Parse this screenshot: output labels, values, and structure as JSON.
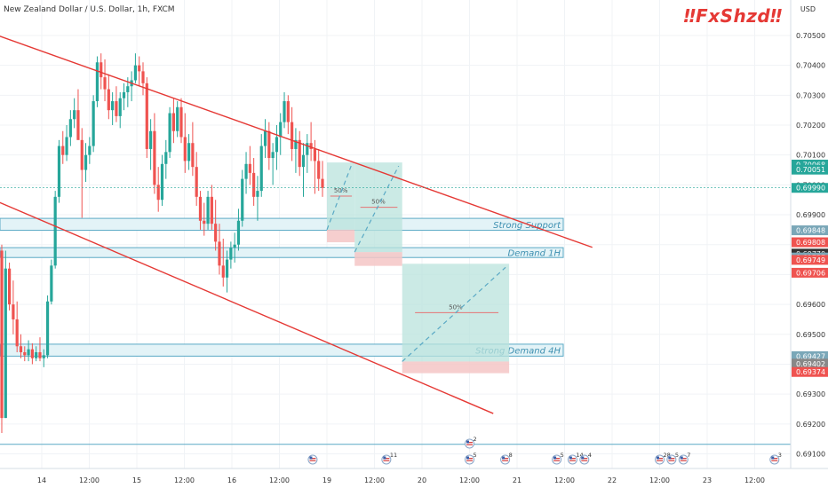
{
  "header": {
    "symbol": "New Zealand Dollar / U.S. Dollar, 1h, FXCM",
    "logo": "‼FxShzd‼",
    "currency": "USD"
  },
  "colors": {
    "bull": "#26a69a",
    "bear": "#ef5350",
    "channel": "#e53935",
    "zone_fill": "#e3f3f7",
    "zone_border": "#5aa9c5",
    "target": "#b9e3dc",
    "stop": "#f4c5c5",
    "dash": "#5aa9c5"
  },
  "chart_data": {
    "type": "candlestick",
    "ylim": [
      0.6906,
      0.7058
    ],
    "y_ticks": [
      "0.69100",
      "0.69200",
      "0.69300",
      "0.69400",
      "0.69500",
      "0.69600",
      "0.69700",
      "0.69800",
      "0.69900",
      "0.70000",
      "0.70100",
      "0.70200",
      "0.70300",
      "0.70400",
      "0.70500"
    ],
    "x_ticks": [
      "14",
      "12:00",
      "15",
      "12:00",
      "16",
      "12:00",
      "19",
      "12:00",
      "20",
      "12:00",
      "21",
      "12:00",
      "22",
      "12:00",
      "23",
      "12:00"
    ],
    "price_labels": [
      {
        "text": "0.70068",
        "value": 0.70068,
        "color": "#26a69a"
      },
      {
        "text": "0.70051",
        "value": 0.70051,
        "color": "#26a69a"
      },
      {
        "text": "0.69990",
        "value": 0.6999,
        "color": "#26a69a"
      },
      {
        "text": "0.69848",
        "value": 0.69848,
        "color": "#7aa7b8"
      },
      {
        "text": "0.69808",
        "value": 0.69808,
        "color": "#ef5350"
      },
      {
        "text": "0.69770",
        "value": 0.6977,
        "color": "#333333"
      },
      {
        "text": "0.69757",
        "value": 0.69757,
        "color": "#7aa7b8"
      },
      {
        "text": "0.69749",
        "value": 0.69749,
        "color": "#ef5350"
      },
      {
        "text": "0.69706",
        "value": 0.69706,
        "color": "#ef5350"
      },
      {
        "text": "0.69427",
        "value": 0.69427,
        "color": "#7aa7b8"
      },
      {
        "text": "0.69402",
        "value": 0.69402,
        "color": "#888888"
      },
      {
        "text": "0.69374",
        "value": 0.69374,
        "color": "#ef5350"
      }
    ],
    "zones": [
      {
        "label": "Strong Support",
        "top": 0.69888,
        "bottom": 0.69848
      },
      {
        "label": "Demand 1H",
        "top": 0.6979,
        "bottom": 0.69757
      },
      {
        "label": "Strong Demand 4H",
        "top": 0.69467,
        "bottom": 0.69427
      }
    ],
    "channel_lines": [
      {
        "x1": "2021-09-13 12:00",
        "y1": 0.70504,
        "x2": "2021-09-21 19:00",
        "y2": 0.69791
      },
      {
        "x1": "2021-09-13 00:00",
        "y1": 0.70017,
        "x2": "2021-09-20 18:00",
        "y2": 0.69235
      }
    ],
    "projections": [
      {
        "label": "50%",
        "start": "2021-09-19 00:00",
        "end": "2021-09-19 07:00",
        "entry": 0.6985,
        "target": 0.70075,
        "stop": 0.69808
      },
      {
        "label": "50%",
        "start": "2021-09-19 07:00",
        "end": "2021-09-19 19:00",
        "entry": 0.69775,
        "target": 0.70075,
        "stop": 0.69729
      },
      {
        "label": "50%",
        "start": "2021-09-19 19:00",
        "end": "2021-09-20 22:00",
        "entry": 0.69409,
        "target": 0.69736,
        "stop": 0.6937
      }
    ],
    "candles_ohlc": [
      [
        0.6978,
        0.698,
        0.6917,
        0.6922
      ],
      [
        0.6922,
        0.6978,
        0.6922,
        0.6972
      ],
      [
        0.6972,
        0.6974,
        0.6958,
        0.696
      ],
      [
        0.696,
        0.6968,
        0.695,
        0.6955
      ],
      [
        0.6955,
        0.6961,
        0.6944,
        0.6946
      ],
      [
        0.6946,
        0.695,
        0.6942,
        0.6944
      ],
      [
        0.6944,
        0.6946,
        0.6941,
        0.6943
      ],
      [
        0.6943,
        0.6948,
        0.6941,
        0.6945
      ],
      [
        0.6945,
        0.6947,
        0.694,
        0.6942
      ],
      [
        0.6942,
        0.6946,
        0.6941,
        0.6944
      ],
      [
        0.6944,
        0.6949,
        0.6941,
        0.6942
      ],
      [
        0.6942,
        0.6945,
        0.6939,
        0.6943
      ],
      [
        0.6943,
        0.6963,
        0.6942,
        0.6961
      ],
      [
        0.6961,
        0.6975,
        0.696,
        0.6973
      ],
      [
        0.6973,
        0.6998,
        0.6972,
        0.6996
      ],
      [
        0.6996,
        0.7015,
        0.6994,
        0.7013
      ],
      [
        0.7013,
        0.7018,
        0.7007,
        0.701
      ],
      [
        0.701,
        0.702,
        0.7008,
        0.7016
      ],
      [
        0.7016,
        0.7025,
        0.7013,
        0.7022
      ],
      [
        0.7022,
        0.7029,
        0.7019,
        0.7025
      ],
      [
        0.7025,
        0.7032,
        0.702,
        0.7015
      ],
      [
        0.7015,
        0.7019,
        0.6989,
        0.7005
      ],
      [
        0.7005,
        0.7014,
        0.7001,
        0.701
      ],
      [
        0.701,
        0.7016,
        0.7007,
        0.7013
      ],
      [
        0.7013,
        0.703,
        0.7011,
        0.7028
      ],
      [
        0.7028,
        0.7043,
        0.7026,
        0.7041
      ],
      [
        0.7041,
        0.7044,
        0.7032,
        0.7036
      ],
      [
        0.7036,
        0.7042,
        0.7028,
        0.7032
      ],
      [
        0.7032,
        0.7037,
        0.7022,
        0.7025
      ],
      [
        0.7025,
        0.7031,
        0.702,
        0.7028
      ],
      [
        0.7028,
        0.7033,
        0.7021,
        0.7023
      ],
      [
        0.7023,
        0.7031,
        0.7019,
        0.7029
      ],
      [
        0.7029,
        0.7034,
        0.7025,
        0.7031
      ],
      [
        0.7031,
        0.7036,
        0.7026,
        0.7033
      ],
      [
        0.7033,
        0.7038,
        0.7028,
        0.7035
      ],
      [
        0.7035,
        0.7044,
        0.7034,
        0.704
      ],
      [
        0.704,
        0.7043,
        0.7033,
        0.7038
      ],
      [
        0.7038,
        0.7041,
        0.703,
        0.7034
      ],
      [
        0.7034,
        0.7036,
        0.7009,
        0.7012
      ],
      [
        0.7012,
        0.7022,
        0.7005,
        0.7018
      ],
      [
        0.7018,
        0.7024,
        0.6997,
        0.7
      ],
      [
        0.7,
        0.7006,
        0.6991,
        0.6995
      ],
      [
        0.6995,
        0.701,
        0.6993,
        0.7007
      ],
      [
        0.7007,
        0.7015,
        0.7002,
        0.7011
      ],
      [
        0.7011,
        0.7026,
        0.7009,
        0.7024
      ],
      [
        0.7024,
        0.7029,
        0.7014,
        0.7018
      ],
      [
        0.7018,
        0.7028,
        0.7016,
        0.7026
      ],
      [
        0.7026,
        0.7029,
        0.7014,
        0.7016
      ],
      [
        0.7016,
        0.7024,
        0.7004,
        0.7008
      ],
      [
        0.7008,
        0.7017,
        0.7005,
        0.7014
      ],
      [
        0.7014,
        0.7021,
        0.7003,
        0.7006
      ],
      [
        0.7006,
        0.7011,
        0.6993,
        0.6996
      ],
      [
        0.6996,
        0.6998,
        0.6985,
        0.6988
      ],
      [
        0.6988,
        0.6994,
        0.6983,
        0.6987
      ],
      [
        0.6987,
        0.6998,
        0.6985,
        0.6996
      ],
      [
        0.6996,
        0.7,
        0.6985,
        0.6987
      ],
      [
        0.6987,
        0.6995,
        0.6978,
        0.6981
      ],
      [
        0.6981,
        0.6987,
        0.697,
        0.6973
      ],
      [
        0.6973,
        0.6982,
        0.6966,
        0.6969
      ],
      [
        0.6969,
        0.6978,
        0.6964,
        0.6975
      ],
      [
        0.6975,
        0.6981,
        0.6972,
        0.6979
      ],
      [
        0.6979,
        0.6984,
        0.6974,
        0.698
      ],
      [
        0.698,
        0.6992,
        0.6978,
        0.6988
      ],
      [
        0.6988,
        0.7005,
        0.6986,
        0.7002
      ],
      [
        0.7002,
        0.7011,
        0.6997,
        0.7007
      ],
      [
        0.7007,
        0.7013,
        0.7,
        0.7004
      ],
      [
        0.7004,
        0.7009,
        0.6993,
        0.6996
      ],
      [
        0.6996,
        0.7003,
        0.6988,
        0.6998
      ],
      [
        0.6998,
        0.7017,
        0.6996,
        0.7013
      ],
      [
        0.7013,
        0.7022,
        0.7009,
        0.7018
      ],
      [
        0.7018,
        0.7021,
        0.7005,
        0.7009
      ],
      [
        0.7009,
        0.7014,
        0.7,
        0.7011
      ],
      [
        0.7011,
        0.702,
        0.7005,
        0.7016
      ],
      [
        0.7016,
        0.7024,
        0.701,
        0.7021
      ],
      [
        0.7021,
        0.7031,
        0.7019,
        0.7028
      ],
      [
        0.7028,
        0.703,
        0.7017,
        0.7021
      ],
      [
        0.7021,
        0.7026,
        0.7008,
        0.7012
      ],
      [
        0.7012,
        0.7019,
        0.7004,
        0.7015
      ],
      [
        0.7015,
        0.7018,
        0.7003,
        0.7006
      ],
      [
        0.7006,
        0.7014,
        0.6996,
        0.701
      ],
      [
        0.701,
        0.7017,
        0.7004,
        0.7014
      ],
      [
        0.7014,
        0.7021,
        0.7008,
        0.7012
      ],
      [
        0.7012,
        0.7015,
        0.6997,
        0.7008
      ],
      [
        0.7008,
        0.7012,
        0.6998,
        0.7002
      ],
      [
        0.7002,
        0.7008,
        0.6996,
        0.6999
      ]
    ],
    "events": [
      {
        "date": "2021-09-18 06:00",
        "badge": ""
      },
      {
        "date": "2021-09-19 15:00",
        "badge": "11"
      },
      {
        "date": "2021-09-20 12:00",
        "badge": "5"
      },
      {
        "date": "2021-09-20 12:00",
        "badge": "2",
        "row": 1
      },
      {
        "date": "2021-09-20 21:00",
        "badge": "8"
      },
      {
        "date": "2021-09-21 10:00",
        "badge": "5"
      },
      {
        "date": "2021-09-21 14:00",
        "badge": "14"
      },
      {
        "date": "2021-09-21 17:00",
        "badge": "4"
      },
      {
        "date": "2021-09-22 12:00",
        "badge": "28"
      },
      {
        "date": "2021-09-22 15:00",
        "badge": "5"
      },
      {
        "date": "2021-09-22 18:00",
        "badge": "7"
      },
      {
        "date": "2021-09-23 17:00",
        "badge": "3"
      }
    ]
  }
}
